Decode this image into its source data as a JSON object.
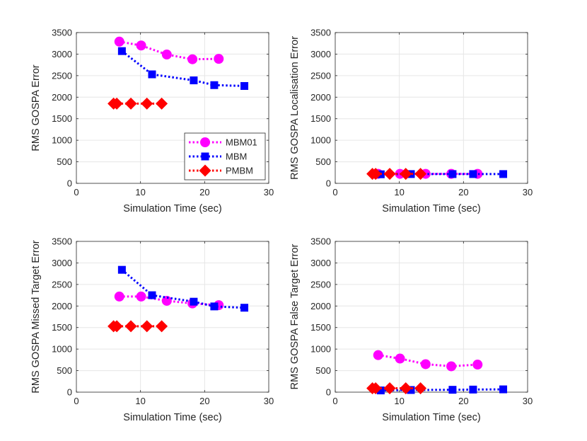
{
  "chart_data": [
    {
      "type": "line",
      "xlabel": "Simulation Time (sec)",
      "ylabel": "RMS GOSPA Error",
      "xlim": [
        0,
        30
      ],
      "ylim": [
        0,
        3500
      ],
      "xticks": [
        0,
        10,
        20,
        30
      ],
      "yticks": [
        0,
        500,
        1000,
        1500,
        2000,
        2500,
        3000,
        3500
      ],
      "grid": true,
      "legend": {
        "position": "inside-lower-right",
        "entries": [
          "MBM01",
          "MBM",
          "PMBM"
        ]
      },
      "series": [
        {
          "name": "MBM01",
          "x": [
            6.7,
            10.1,
            14.1,
            18.1,
            22.2
          ],
          "y": [
            3290,
            3200,
            2990,
            2880,
            2890
          ]
        },
        {
          "name": "MBM",
          "x": [
            7.1,
            11.8,
            18.3,
            21.5,
            26.2
          ],
          "y": [
            3070,
            2530,
            2390,
            2280,
            2260
          ]
        },
        {
          "name": "PMBM",
          "x": [
            5.8,
            6.3,
            8.5,
            11.0,
            13.3
          ],
          "y": [
            1850,
            1850,
            1850,
            1850,
            1850
          ]
        }
      ]
    },
    {
      "type": "line",
      "xlabel": "Simulation Time (sec)",
      "ylabel": "RMS GOSPA Localisation Error",
      "xlim": [
        0,
        30
      ],
      "ylim": [
        0,
        3500
      ],
      "xticks": [
        0,
        10,
        20,
        30
      ],
      "yticks": [
        0,
        500,
        1000,
        1500,
        2000,
        2500,
        3000,
        3500
      ],
      "grid": true,
      "series": [
        {
          "name": "MBM01",
          "x": [
            6.7,
            10.1,
            14.1,
            18.1,
            22.2
          ],
          "y": [
            220,
            220,
            220,
            220,
            220
          ]
        },
        {
          "name": "MBM",
          "x": [
            7.1,
            11.8,
            18.3,
            21.5,
            26.2
          ],
          "y": [
            210,
            215,
            215,
            215,
            215
          ]
        },
        {
          "name": "PMBM",
          "x": [
            5.8,
            6.3,
            8.5,
            11.0,
            13.3
          ],
          "y": [
            220,
            220,
            220,
            220,
            220
          ]
        }
      ]
    },
    {
      "type": "line",
      "xlabel": "Simulation Time (sec)",
      "ylabel": "RMS GOSPA Missed Target Error",
      "xlim": [
        0,
        30
      ],
      "ylim": [
        0,
        3500
      ],
      "xticks": [
        0,
        10,
        20,
        30
      ],
      "yticks": [
        0,
        500,
        1000,
        1500,
        2000,
        2500,
        3000,
        3500
      ],
      "grid": true,
      "series": [
        {
          "name": "MBM01",
          "x": [
            6.7,
            10.1,
            14.1,
            18.1,
            22.2
          ],
          "y": [
            2220,
            2220,
            2120,
            2060,
            2020
          ]
        },
        {
          "name": "MBM",
          "x": [
            7.1,
            11.8,
            18.3,
            21.5,
            26.2
          ],
          "y": [
            2840,
            2250,
            2100,
            1990,
            1960
          ]
        },
        {
          "name": "PMBM",
          "x": [
            5.8,
            6.3,
            8.5,
            11.0,
            13.3
          ],
          "y": [
            1530,
            1530,
            1530,
            1530,
            1530
          ]
        }
      ]
    },
    {
      "type": "line",
      "xlabel": "Simulation Time (sec)",
      "ylabel": "RMS GOSPA False Target Error",
      "xlim": [
        0,
        30
      ],
      "ylim": [
        0,
        3500
      ],
      "xticks": [
        0,
        10,
        20,
        30
      ],
      "yticks": [
        0,
        500,
        1000,
        1500,
        2000,
        2500,
        3000,
        3500
      ],
      "grid": true,
      "series": [
        {
          "name": "MBM01",
          "x": [
            6.7,
            10.1,
            14.1,
            18.1,
            22.2
          ],
          "y": [
            860,
            780,
            650,
            600,
            640
          ]
        },
        {
          "name": "MBM",
          "x": [
            7.1,
            11.8,
            18.3,
            21.5,
            26.2
          ],
          "y": [
            40,
            50,
            55,
            60,
            65
          ]
        },
        {
          "name": "PMBM",
          "x": [
            5.8,
            6.3,
            8.5,
            11.0,
            13.3
          ],
          "y": [
            90,
            90,
            90,
            90,
            90
          ]
        }
      ]
    }
  ],
  "styles": {
    "MBM01": {
      "color": "#ff00ff",
      "marker": "circle"
    },
    "MBM": {
      "color": "#0000ff",
      "marker": "square"
    },
    "PMBM": {
      "color": "#ff0000",
      "marker": "diamond"
    },
    "axis_color": "#262626",
    "grid_color": "#e6e6e6"
  }
}
